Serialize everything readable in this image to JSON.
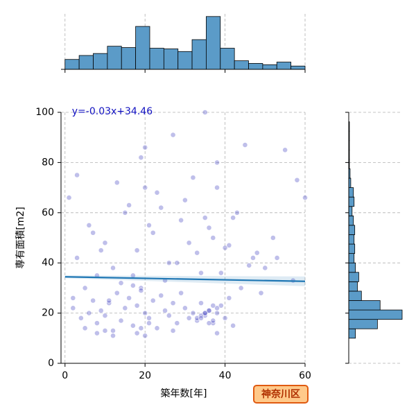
{
  "chart_data": {
    "type": "jointplot",
    "x_label": "築年数[年]",
    "y_label": "専有面積[m2]",
    "badge": "神奈川区",
    "xlim": [
      -1,
      60
    ],
    "ylim": [
      0,
      100
    ],
    "xticks": [
      0,
      20,
      40,
      60
    ],
    "yticks": [
      0,
      20,
      40,
      60,
      80,
      100
    ],
    "grid": true,
    "point_color": "#2a2ab8",
    "line_color": "#1f77b4",
    "hist_color": "#5b9bc8",
    "regression": {
      "label": "y=-0.03x+34.46",
      "slope": -0.03,
      "intercept": 34.46
    },
    "x": [
      2,
      4,
      5,
      6,
      7,
      8,
      9,
      10,
      11,
      12,
      13,
      14,
      15,
      16,
      17,
      18,
      19,
      20,
      21,
      22,
      23,
      24,
      25,
      26,
      27,
      28,
      29,
      30,
      31,
      32,
      33,
      34,
      35,
      36,
      37,
      38,
      39,
      40,
      41,
      42,
      3,
      6,
      8,
      10,
      12,
      15,
      18,
      20,
      22,
      25,
      28,
      30,
      33,
      35,
      37,
      39,
      41,
      44,
      47,
      50,
      1,
      3,
      5,
      9,
      13,
      17,
      19,
      21,
      24,
      27,
      31,
      34,
      36,
      38,
      40,
      43,
      46,
      49,
      53,
      57,
      2,
      7,
      11,
      16,
      20,
      23,
      26,
      29,
      32,
      35,
      38,
      42,
      45,
      48,
      52,
      55,
      58,
      60,
      14,
      19,
      33,
      34,
      35,
      36,
      37,
      38,
      36,
      35,
      34,
      37,
      18,
      19,
      20,
      21,
      17,
      8,
      10,
      12,
      27,
      38
    ],
    "y": [
      22,
      18,
      14,
      20,
      25,
      16,
      21,
      19,
      24,
      13,
      28,
      17,
      22,
      26,
      15,
      23,
      30,
      20,
      18,
      25,
      14,
      27,
      21,
      19,
      24,
      16,
      28,
      22,
      18,
      20,
      17,
      24,
      19,
      21,
      16,
      20,
      23,
      18,
      26,
      15,
      42,
      55,
      35,
      48,
      38,
      60,
      45,
      70,
      52,
      33,
      40,
      65,
      44,
      58,
      50,
      36,
      47,
      30,
      42,
      38,
      66,
      75,
      30,
      45,
      72,
      35,
      82,
      55,
      62,
      91,
      48,
      36,
      54,
      70,
      46,
      60,
      39,
      28,
      42,
      33,
      26,
      52,
      25,
      63,
      86,
      68,
      40,
      57,
      74,
      100,
      80,
      58,
      87,
      44,
      50,
      85,
      73,
      66,
      32,
      29,
      18,
      19,
      20,
      21,
      17,
      22,
      16,
      20,
      18,
      23,
      12,
      14,
      11,
      16,
      31,
      12,
      13,
      11,
      13,
      12
    ],
    "x_hist": {
      "bins": [
        0,
        3.53,
        7.06,
        10.59,
        14.12,
        17.65,
        21.18,
        24.71,
        28.24,
        31.76,
        35.29,
        38.82,
        42.35,
        45.88,
        49.41,
        52.94,
        56.47,
        60
      ],
      "counts": [
        15,
        21,
        24,
        35,
        33,
        65,
        32,
        31,
        27,
        45,
        80,
        32,
        13,
        9,
        7,
        11,
        5
      ],
      "countlim": [
        0,
        84
      ]
    },
    "y_hist": {
      "bins": [
        10,
        13.75,
        17.5,
        21.25,
        25,
        28.75,
        32.5,
        36.25,
        40,
        43.75,
        47.5,
        51.25,
        55,
        58.75,
        62.5,
        66.25,
        70,
        73.75,
        77.5,
        81.25,
        85,
        88.75,
        92.5,
        96.25,
        100
      ],
      "counts": [
        10,
        43,
        80,
        47,
        19,
        13,
        15,
        10,
        8,
        9,
        8,
        9,
        7,
        5,
        8,
        7,
        3,
        2,
        1,
        1,
        1,
        1,
        1,
        0
      ],
      "countlim": [
        0,
        80
      ]
    }
  }
}
